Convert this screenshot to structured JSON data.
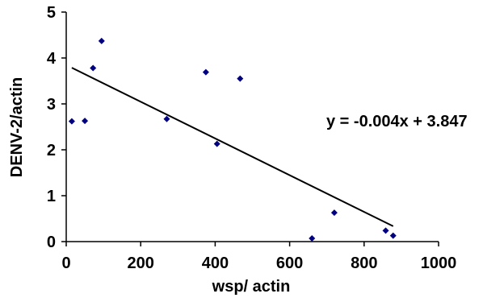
{
  "chart_data": {
    "type": "scatter",
    "title": "",
    "xlabel": "wsp/ actin",
    "ylabel": "DENV-2/actin",
    "xlim": [
      0,
      1000
    ],
    "ylim": [
      0,
      5
    ],
    "xticks": [
      0,
      200,
      400,
      600,
      800,
      1000
    ],
    "yticks": [
      0,
      1,
      2,
      3,
      4,
      5
    ],
    "grid": false,
    "legend": "none",
    "marker": "diamond",
    "marker_color": "#000080",
    "series": [
      {
        "points": [
          {
            "x": 15,
            "y": 2.62
          },
          {
            "x": 50,
            "y": 2.63
          },
          {
            "x": 72,
            "y": 3.78
          },
          {
            "x": 95,
            "y": 4.37
          },
          {
            "x": 270,
            "y": 2.67
          },
          {
            "x": 375,
            "y": 3.69
          },
          {
            "x": 405,
            "y": 2.13
          },
          {
            "x": 467,
            "y": 3.55
          },
          {
            "x": 660,
            "y": 0.07
          },
          {
            "x": 720,
            "y": 0.63
          },
          {
            "x": 858,
            "y": 0.24
          },
          {
            "x": 878,
            "y": 0.13
          }
        ]
      }
    ],
    "trendline": {
      "slope": -0.004,
      "intercept": 3.847,
      "x_from": 15,
      "x_to": 878,
      "color": "#000000"
    },
    "annotation": "y = -0.004x + 3.847"
  }
}
